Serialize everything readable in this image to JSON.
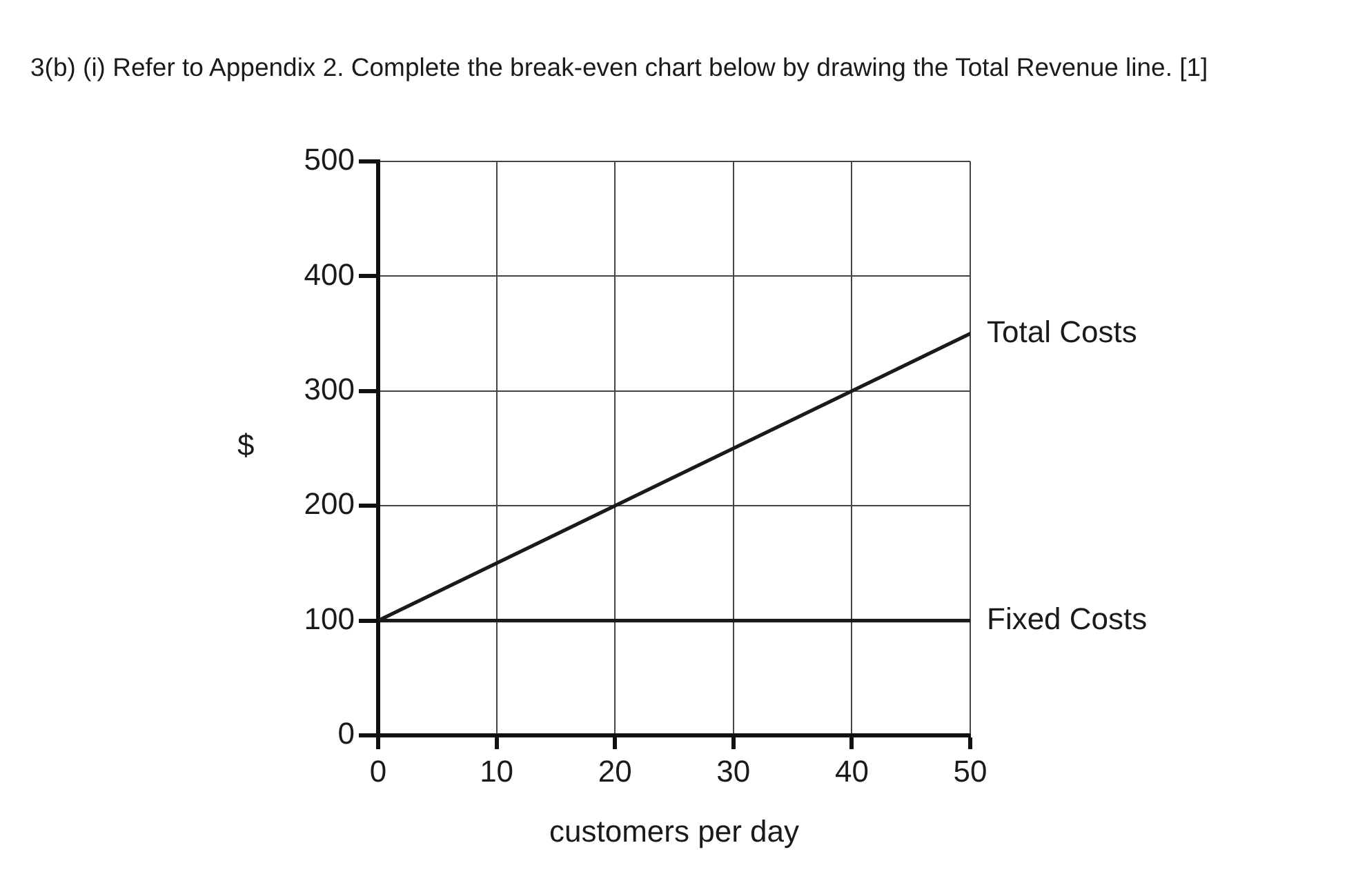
{
  "chart_data": {
    "type": "line",
    "title": "3(b) (i) Refer to Appendix 2. Complete the break-even chart below by drawing the Total Revenue line. [1]",
    "xlabel": "customers per day",
    "ylabel": "$",
    "x": [
      0,
      50
    ],
    "series": [
      {
        "name": "Total Costs",
        "color": "#1a1a1a",
        "values": [
          100,
          350
        ]
      },
      {
        "name": "Fixed Costs",
        "color": "#1a1a1a",
        "values": [
          100,
          100
        ]
      }
    ],
    "xlim": [
      0,
      50
    ],
    "xticks": [
      0,
      10,
      20,
      30,
      40,
      50
    ],
    "ylim": [
      0,
      500
    ],
    "yticks": [
      0,
      100,
      200,
      300,
      400,
      500
    ],
    "grid": true,
    "marker": "none",
    "line_style": "solid"
  }
}
